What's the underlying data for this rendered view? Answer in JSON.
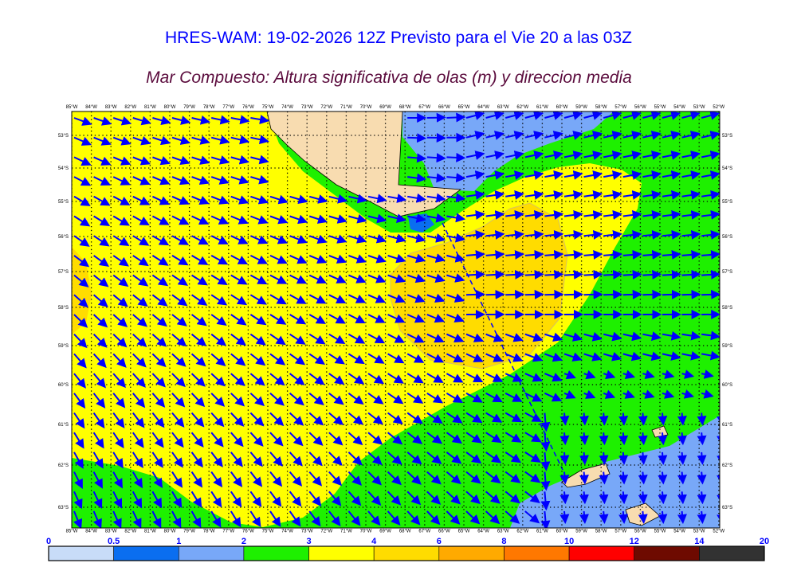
{
  "title": "HRES-WAM: 19-02-2026 12Z Previsto para el Vie 20 a las 03Z",
  "subtitle": "Mar Compuesto: Altura significativa de olas (m) y direccion media",
  "lon_labels": [
    "85°W",
    "84°W",
    "83°W",
    "82°W",
    "81°W",
    "80°W",
    "79°W",
    "78°W",
    "77°W",
    "76°W",
    "75°W",
    "74°W",
    "73°W",
    "72°W",
    "71°W",
    "70°W",
    "69°W",
    "68°W",
    "67°W",
    "66°W",
    "65°W",
    "64°W",
    "63°W",
    "62°W",
    "61°W",
    "60°W",
    "59°W",
    "58°W",
    "57°W",
    "56°W",
    "55°W",
    "54°W",
    "53°W",
    "52°W"
  ],
  "lat_labels": [
    "53°S",
    "54°S",
    "55°S",
    "56°S",
    "57°S",
    "58°S",
    "59°S",
    "60°S",
    "61°S",
    "62°S",
    "63°S"
  ],
  "colorbar": {
    "ticks": [
      "0",
      "0.5",
      "1",
      "2",
      "3",
      "4",
      "6",
      "8",
      "10",
      "12",
      "14",
      "20"
    ],
    "colors": [
      "#c8dcf8",
      "#0a6ef0",
      "#78a8f8",
      "#1ef000",
      "#ffff00",
      "#ffdc00",
      "#ffaa00",
      "#ff7800",
      "#ff0000",
      "#6e0a00",
      "#323232"
    ]
  }
}
